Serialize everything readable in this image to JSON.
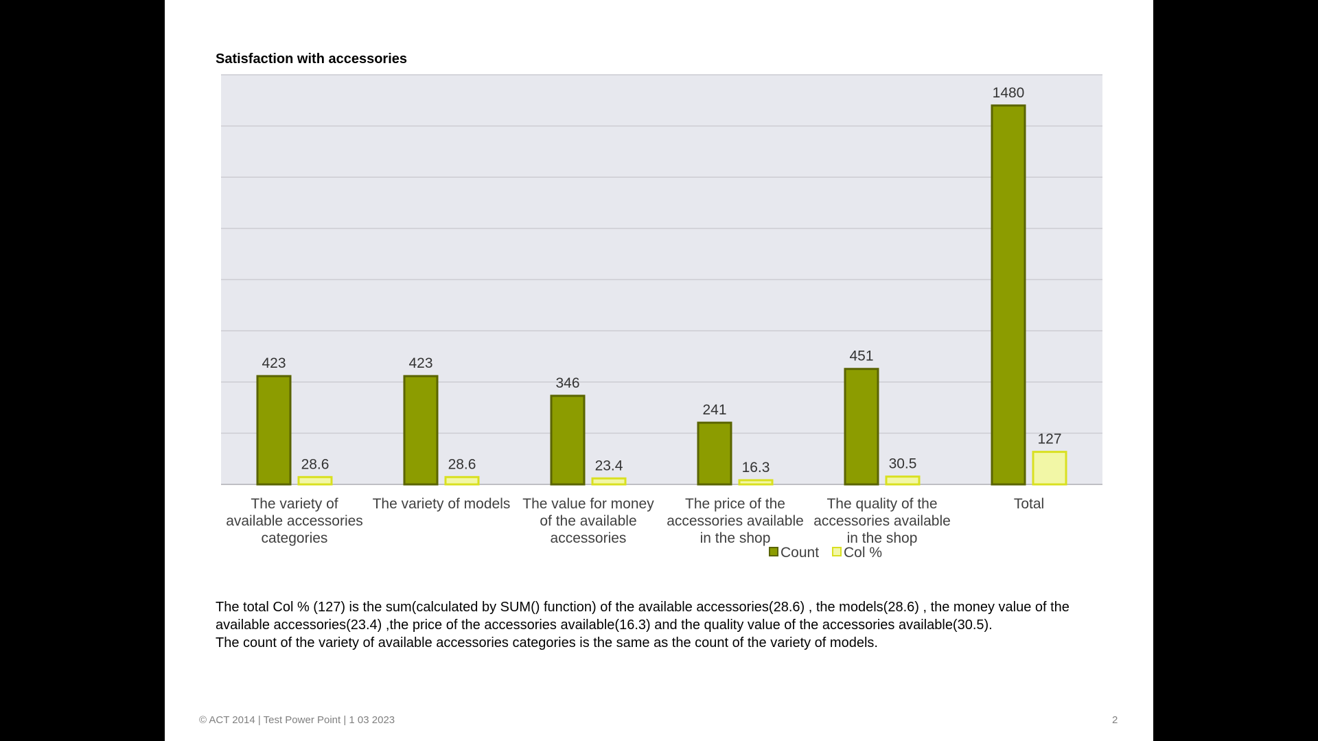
{
  "slide": {
    "notes": [
      "The total Col % (127) is the sum(calculated by SUM() function) of the available accessories(28.6) , the models(28.6) , the money value of the available accessories(23.4) ,the price of the accessories available(16.3) and the quality value of the accessories available(30.5).",
      "The count of the variety of available accessories categories is the same as the count of the variety of models."
    ],
    "footer_left": "© ACT 2014 | Test Power Point | 1 03 2023",
    "page_number": "2"
  },
  "chart_data": {
    "type": "bar",
    "title": "Satisfaction with accessories",
    "categories": [
      [
        "The variety of",
        "available accessories",
        "categories"
      ],
      [
        "The variety of models"
      ],
      [
        "The value for money",
        "of the available",
        "accessories"
      ],
      [
        "The price of the",
        "accessories available",
        "in the shop"
      ],
      [
        "The quality of the",
        "accessories available",
        "in the shop"
      ],
      [
        "Total"
      ]
    ],
    "series": [
      {
        "name": "Count",
        "values": [
          423,
          423,
          346,
          241,
          451,
          1480
        ],
        "color": "#8c9c00",
        "border": "#5a6400"
      },
      {
        "name": "Col %",
        "values": [
          28.6,
          28.6,
          23.4,
          16.3,
          30.5,
          127
        ],
        "color": "#f2f7a6",
        "border": "#d9e021"
      }
    ],
    "ylim": [
      0,
      1600
    ],
    "grid": true,
    "plot_background": "#e7e8ee",
    "legend": "bottom",
    "data_labels": true
  }
}
